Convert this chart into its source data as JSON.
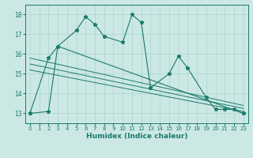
{
  "xlabel": "Humidex (Indice chaleur)",
  "bg_color": "#cce8e4",
  "grid_color": "#aad4ce",
  "line_color": "#1a7a6e",
  "xlim": [
    -0.5,
    23.5
  ],
  "ylim": [
    12.5,
    18.5
  ],
  "yticks": [
    13,
    14,
    15,
    16,
    17,
    18
  ],
  "xticks": [
    0,
    1,
    2,
    3,
    4,
    5,
    6,
    7,
    8,
    9,
    10,
    11,
    12,
    13,
    14,
    15,
    16,
    17,
    18,
    19,
    20,
    21,
    22,
    23
  ],
  "series1_x": [
    0,
    2,
    3,
    5,
    6,
    7,
    8,
    10,
    11,
    12,
    13,
    15,
    16,
    17,
    19,
    20,
    21,
    22,
    23
  ],
  "series1_y": [
    13.0,
    13.1,
    16.4,
    17.2,
    17.9,
    17.5,
    16.9,
    16.6,
    18.0,
    17.6,
    14.3,
    15.0,
    15.9,
    15.3,
    13.8,
    13.2,
    13.2,
    13.2,
    13.0
  ],
  "series2_x": [
    0,
    2,
    3,
    23
  ],
  "series2_y": [
    13.0,
    15.8,
    16.4,
    13.0
  ],
  "trend_lines": [
    {
      "x": [
        0,
        23
      ],
      "y": [
        15.8,
        13.4
      ]
    },
    {
      "x": [
        0,
        23
      ],
      "y": [
        15.5,
        13.25
      ]
    },
    {
      "x": [
        0,
        23
      ],
      "y": [
        15.2,
        13.1
      ]
    }
  ]
}
